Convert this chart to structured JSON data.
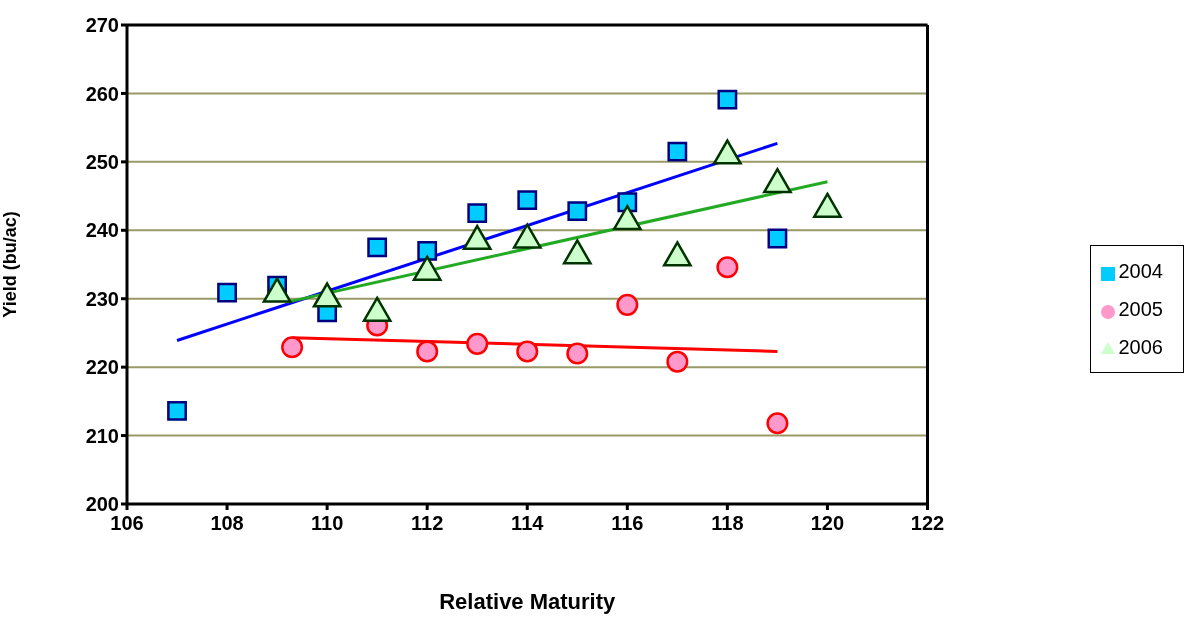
{
  "chart_data": {
    "type": "scatter",
    "xlabel": "Relative Maturity",
    "ylabel": "Yield (bu/ac)",
    "xlim": [
      106,
      122
    ],
    "xticks": [
      106,
      108,
      110,
      112,
      114,
      116,
      118,
      120,
      122
    ],
    "ylim": [
      200,
      270
    ],
    "yticks": [
      200,
      210,
      220,
      230,
      240,
      250,
      260,
      270
    ],
    "grid": "y",
    "legend": "right",
    "series": [
      {
        "name": "2004",
        "color": "#00ccff",
        "marker": "square",
        "x": [
          107,
          108,
          109,
          110,
          111,
          112,
          113,
          114,
          115,
          116,
          117,
          118,
          119
        ],
        "values": [
          213.6,
          230.9,
          231.9,
          228.0,
          237.5,
          237.0,
          242.5,
          244.4,
          242.8,
          244.1,
          251.5,
          259.1,
          238.8
        ]
      },
      {
        "name": "2005",
        "color": "#ff99cc",
        "marker": "circle",
        "x": [
          109.3,
          111,
          112,
          113,
          114,
          115,
          116,
          117,
          118,
          119
        ],
        "values": [
          222.9,
          226.1,
          222.3,
          223.4,
          222.3,
          222.0,
          229.1,
          220.8,
          234.6,
          211.8
        ]
      },
      {
        "name": "2006",
        "color": "#ccffcc",
        "marker": "triangle",
        "x": [
          109,
          110,
          111,
          112,
          113,
          114,
          115,
          116,
          117,
          118,
          119,
          120
        ],
        "values": [
          230.7,
          230.0,
          227.9,
          233.9,
          238.4,
          238.6,
          236.3,
          241.3,
          236.0,
          250.9,
          246.7,
          243.1
        ]
      },
      {
        "type": "line",
        "color": "#0000ff",
        "marker": "none",
        "x": [
          107,
          119
        ],
        "values": [
          223.9,
          252.7
        ]
      },
      {
        "type": "line",
        "color": "#ff0000",
        "marker": "none",
        "x": [
          109.3,
          119
        ],
        "values": [
          224.3,
          222.3
        ]
      },
      {
        "type": "line",
        "color": "#22aa22",
        "marker": "none",
        "x": [
          109.2,
          120
        ],
        "values": [
          229.5,
          247.1
        ]
      }
    ]
  }
}
